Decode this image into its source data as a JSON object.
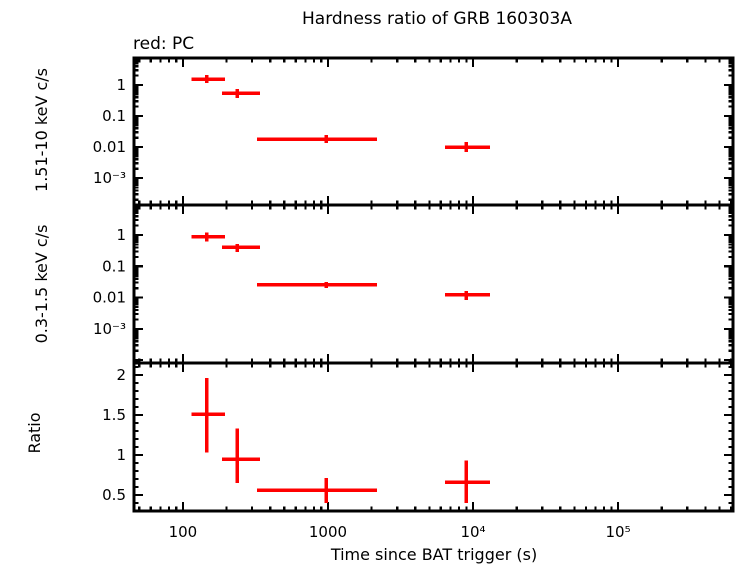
{
  "header": {
    "title": "Hardness ratio of GRB 160303A",
    "mode_label": "red: PC"
  },
  "axes": {
    "xlabel": "Time since BAT trigger (s)",
    "xscale": "log",
    "xlim": [
      46,
      620000
    ],
    "x_ticks": [
      {
        "v": 100,
        "label": "100"
      },
      {
        "v": 1000,
        "label": "1000"
      },
      {
        "v": 10000,
        "label": "10⁴"
      },
      {
        "v": 100000,
        "label": "10⁵"
      }
    ]
  },
  "colors": {
    "data": "#ff0000",
    "frame": "#000000",
    "background": "#ffffff"
  },
  "chart_data": [
    {
      "type": "scatter",
      "name": "hard-band",
      "ylabel": "1.51-10 keV c/s",
      "yscale": "log",
      "ylim": [
        0.000135,
        7.4
      ],
      "yticks": [
        {
          "v": 1,
          "label": "1"
        },
        {
          "v": 0.1,
          "label": "0.1"
        },
        {
          "v": 0.01,
          "label": "0.01"
        },
        {
          "v": 0.001,
          "label": "10⁻³"
        }
      ],
      "series": [
        {
          "name": "PC",
          "color": "#ff0000",
          "points": [
            {
              "x": 146,
              "xlo": 115,
              "xhi": 195,
              "y": 1.55,
              "ylo": 1.16,
              "yhi": 2.1
            },
            {
              "x": 236,
              "xlo": 186,
              "xhi": 340,
              "y": 0.55,
              "ylo": 0.38,
              "yhi": 0.74
            },
            {
              "x": 970,
              "xlo": 324,
              "xhi": 2180,
              "y": 0.018,
              "ylo": 0.0135,
              "yhi": 0.024
            },
            {
              "x": 8950,
              "xlo": 6400,
              "xhi": 13100,
              "y": 0.01,
              "ylo": 0.0069,
              "yhi": 0.0145
            }
          ]
        }
      ]
    },
    {
      "type": "scatter",
      "name": "soft-band",
      "ylabel": "0.3-1.5 keV c/s",
      "yscale": "log",
      "ylim": [
        8.1e-05,
        9.1
      ],
      "yticks": [
        {
          "v": 1,
          "label": "1"
        },
        {
          "v": 0.1,
          "label": "0.1"
        },
        {
          "v": 0.01,
          "label": "0.01"
        },
        {
          "v": 0.001,
          "label": "10⁻³"
        }
      ],
      "series": [
        {
          "name": "PC",
          "color": "#ff0000",
          "points": [
            {
              "x": 146,
              "xlo": 115,
              "xhi": 195,
              "y": 0.88,
              "ylo": 0.62,
              "yhi": 1.22
            },
            {
              "x": 236,
              "xlo": 186,
              "xhi": 340,
              "y": 0.4,
              "ylo": 0.29,
              "yhi": 0.52
            },
            {
              "x": 970,
              "xlo": 324,
              "xhi": 2180,
              "y": 0.026,
              "ylo": 0.02,
              "yhi": 0.031
            },
            {
              "x": 8950,
              "xlo": 6400,
              "xhi": 13100,
              "y": 0.0125,
              "ylo": 0.0084,
              "yhi": 0.016
            }
          ]
        }
      ]
    },
    {
      "type": "scatter",
      "name": "ratio",
      "ylabel": "Ratio",
      "yscale": "linear",
      "ylim": [
        0.3,
        2.15
      ],
      "yticks": [
        {
          "v": 0.5,
          "label": "0.5"
        },
        {
          "v": 1,
          "label": "1"
        },
        {
          "v": 1.5,
          "label": "1.5"
        },
        {
          "v": 2,
          "label": "2"
        }
      ],
      "series": [
        {
          "name": "PC",
          "color": "#ff0000",
          "points": [
            {
              "x": 146,
              "xlo": 115,
              "xhi": 195,
              "y": 1.51,
              "ylo": 1.03,
              "yhi": 1.96
            },
            {
              "x": 236,
              "xlo": 186,
              "xhi": 340,
              "y": 0.95,
              "ylo": 0.65,
              "yhi": 1.33
            },
            {
              "x": 970,
              "xlo": 324,
              "xhi": 2180,
              "y": 0.56,
              "ylo": 0.4,
              "yhi": 0.71
            },
            {
              "x": 8950,
              "xlo": 6400,
              "xhi": 13100,
              "y": 0.66,
              "ylo": 0.4,
              "yhi": 0.93
            }
          ]
        }
      ]
    }
  ]
}
